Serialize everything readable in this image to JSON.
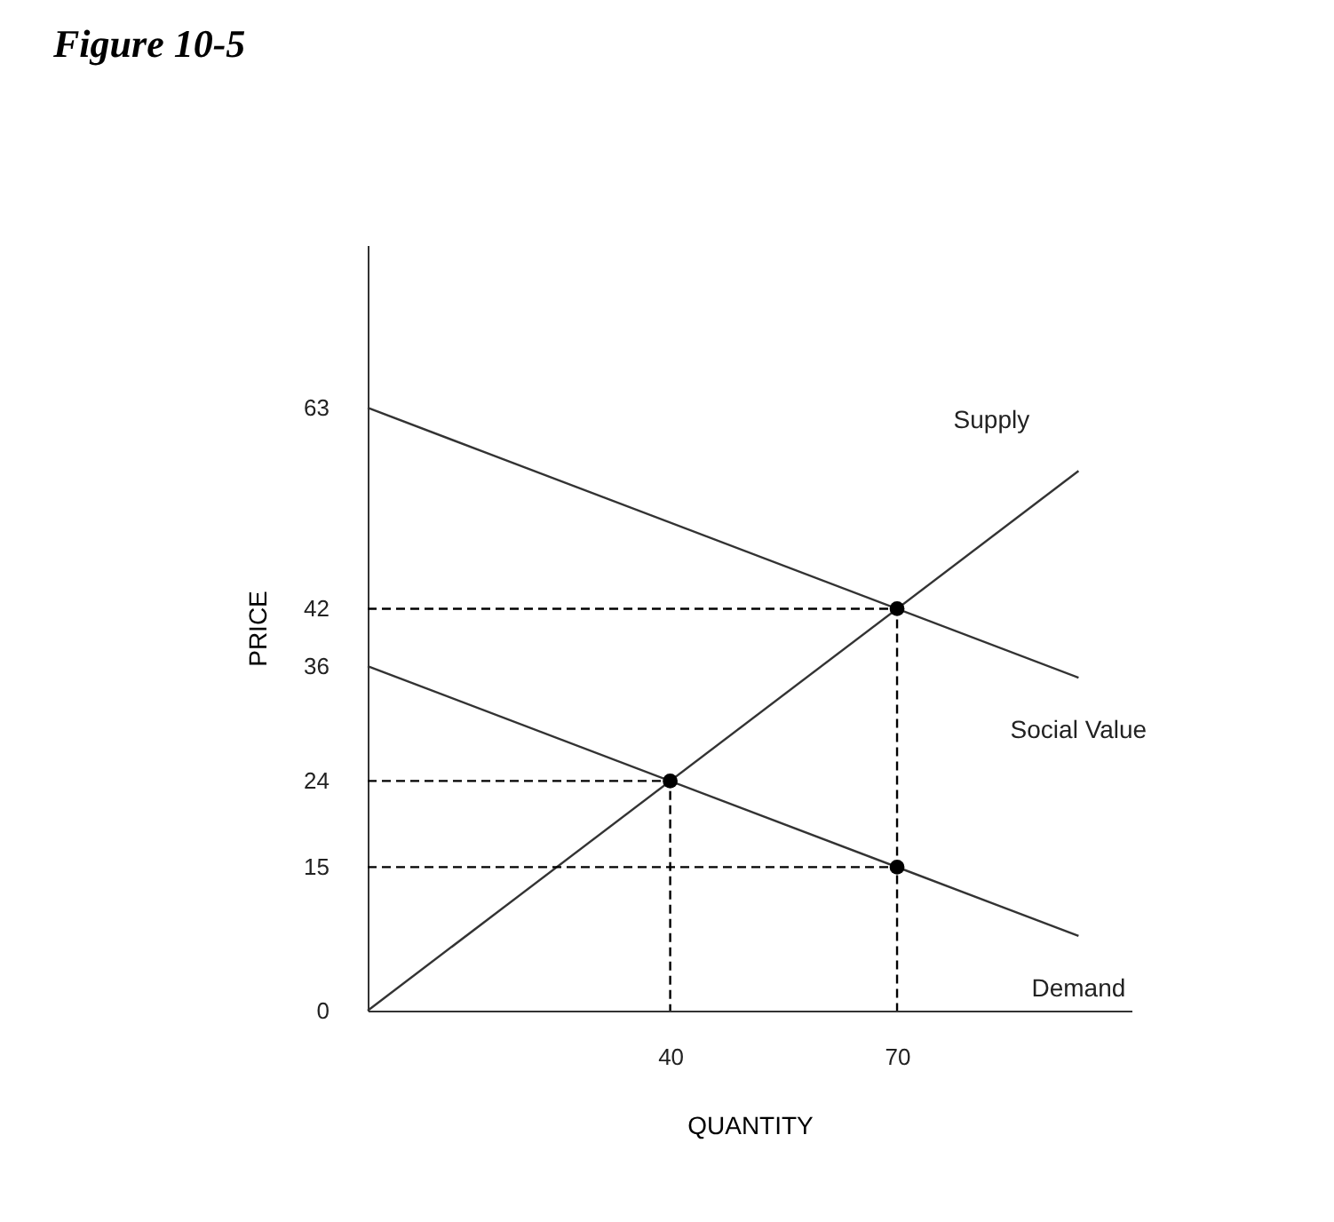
{
  "chart_data": {
    "type": "line",
    "title": "Figure 10-5",
    "xlabel": "QUANTITY",
    "ylabel": "PRICE",
    "xlim": [
      0,
      101
    ],
    "ylim": [
      0,
      80
    ],
    "xticks": [
      40,
      70
    ],
    "yticks": [
      0,
      15,
      24,
      36,
      42,
      63
    ],
    "series": [
      {
        "name": "Supply",
        "color": "#333333",
        "x": [
          0,
          94
        ],
        "values": [
          0,
          56.4
        ]
      },
      {
        "name": "Social Value",
        "color": "#333333",
        "x": [
          0,
          94
        ],
        "values": [
          63,
          34.8
        ]
      },
      {
        "name": "Demand",
        "color": "#333333",
        "x": [
          0,
          94
        ],
        "values": [
          36,
          7.8
        ]
      },
      {
        "type": "line",
        "line_style": "dashed",
        "color": "#000000",
        "x": [
          0,
          70,
          70
        ],
        "values": [
          42,
          42,
          0
        ]
      },
      {
        "type": "line",
        "line_style": "dashed",
        "color": "#000000",
        "x": [
          0,
          40,
          40
        ],
        "values": [
          24,
          24,
          0
        ]
      },
      {
        "type": "line",
        "line_style": "dashed",
        "color": "#000000",
        "x": [
          0,
          70
        ],
        "values": [
          15,
          15
        ]
      },
      {
        "type": "scatter",
        "marker": "circle",
        "color": "#000000",
        "x": [
          40,
          70,
          70
        ],
        "values": [
          24,
          42,
          15
        ]
      }
    ]
  }
}
